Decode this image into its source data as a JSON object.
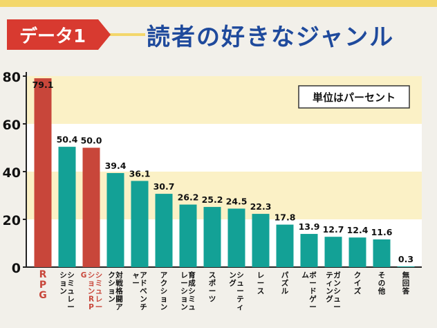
{
  "header": {
    "label": "データ1",
    "title": "読者の好きなジャンル"
  },
  "chart_data": {
    "type": "bar",
    "unit_note": "単位はパーセント",
    "ylim": [
      0,
      80
    ],
    "yticks": [
      0,
      20,
      40,
      60,
      80
    ],
    "bars": [
      {
        "label": "RPG",
        "value": 79.1,
        "color": "#c8463a",
        "label_color": "#c8463a",
        "value_text": "79.1"
      },
      {
        "label": "シミュレーション",
        "value": 50.4,
        "color": "#13a196",
        "label_color": "#111111",
        "value_text": "50.4"
      },
      {
        "label": "シミュレーションRPG",
        "value": 50.0,
        "color": "#c8463a",
        "label_color": "#c8463a",
        "value_text": "50.0"
      },
      {
        "label": "対戦格闘アクション",
        "value": 39.4,
        "color": "#13a196",
        "label_color": "#111111",
        "value_text": "39.4"
      },
      {
        "label": "アドベンチャー",
        "value": 36.1,
        "color": "#13a196",
        "label_color": "#111111",
        "value_text": "36.1"
      },
      {
        "label": "アクション",
        "value": 30.7,
        "color": "#13a196",
        "label_color": "#111111",
        "value_text": "30.7"
      },
      {
        "label": "育成シミュレーション",
        "value": 26.2,
        "color": "#13a196",
        "label_color": "#111111",
        "value_text": "26.2"
      },
      {
        "label": "スポーツ",
        "value": 25.2,
        "color": "#13a196",
        "label_color": "#111111",
        "value_text": "25.2"
      },
      {
        "label": "シューティング",
        "value": 24.5,
        "color": "#13a196",
        "label_color": "#111111",
        "value_text": "24.5"
      },
      {
        "label": "レース",
        "value": 22.3,
        "color": "#13a196",
        "label_color": "#111111",
        "value_text": "22.3"
      },
      {
        "label": "パズル",
        "value": 17.8,
        "color": "#13a196",
        "label_color": "#111111",
        "value_text": "17.8"
      },
      {
        "label": "ボードゲーム",
        "value": 13.9,
        "color": "#13a196",
        "label_color": "#111111",
        "value_text": "13.9"
      },
      {
        "label": "ガンシューティング",
        "value": 12.7,
        "color": "#13a196",
        "label_color": "#111111",
        "value_text": "12.7"
      },
      {
        "label": "クイズ",
        "value": 12.4,
        "color": "#13a196",
        "label_color": "#111111",
        "value_text": "12.4"
      },
      {
        "label": "その他",
        "value": 11.6,
        "color": "#13a196",
        "label_color": "#111111",
        "value_text": "11.6"
      },
      {
        "label": "無回答",
        "value": 0.3,
        "color": "#13a196",
        "label_color": "#111111",
        "value_text": "0.3"
      }
    ],
    "band_color": "#fbf1c6"
  }
}
